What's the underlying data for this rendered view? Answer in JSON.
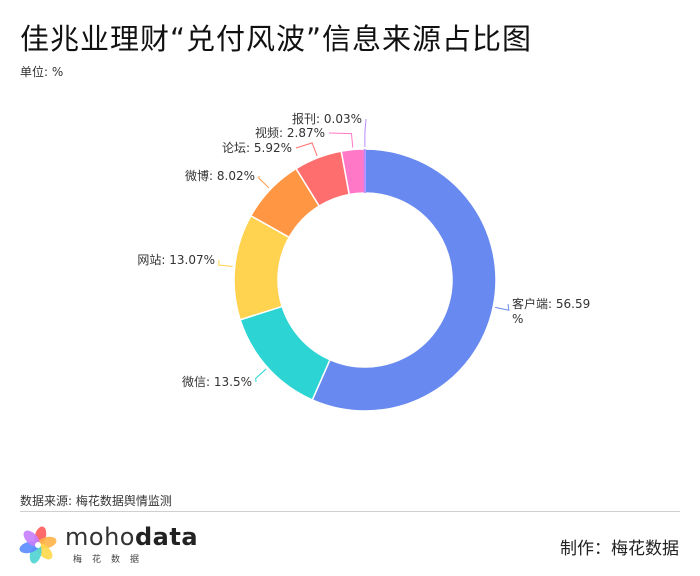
{
  "header": {
    "title": "佳兆业理财“兑付风波”信息来源占比图",
    "unit": "单位: %"
  },
  "chart_data": {
    "type": "pie",
    "donut": true,
    "unit": "%",
    "categories": [
      "客户端",
      "微信",
      "网站",
      "微博",
      "论坛",
      "视频",
      "报刊"
    ],
    "values": [
      56.59,
      13.5,
      13.07,
      8.02,
      5.92,
      2.87,
      0.03
    ],
    "labels": [
      "客户端: 56.59%",
      "微信: 13.5%",
      "网站: 13.07%",
      "微博: 8.02%",
      "论坛: 5.92%",
      "视频: 2.87%",
      "报刊: 0.03%"
    ],
    "colors": [
      "#6889ef",
      "#2dd4d4",
      "#ffd24f",
      "#ff9644",
      "#ff6e6e",
      "#ff78c8",
      "#b98bff"
    ],
    "title": "佳兆业理财“兑付风波”信息来源占比图",
    "legend": "none"
  },
  "footer": {
    "source": "数据来源: 梅花数据舆情监测",
    "credit": "制作：梅花数据",
    "logo_text_light": "moho",
    "logo_text_bold": "data",
    "logo_subtitle": "梅花数据",
    "logo_colors": [
      "#ff5a5a",
      "#ffb347",
      "#ffd84a",
      "#4fd3d3",
      "#5a8cff",
      "#c77dff"
    ]
  }
}
